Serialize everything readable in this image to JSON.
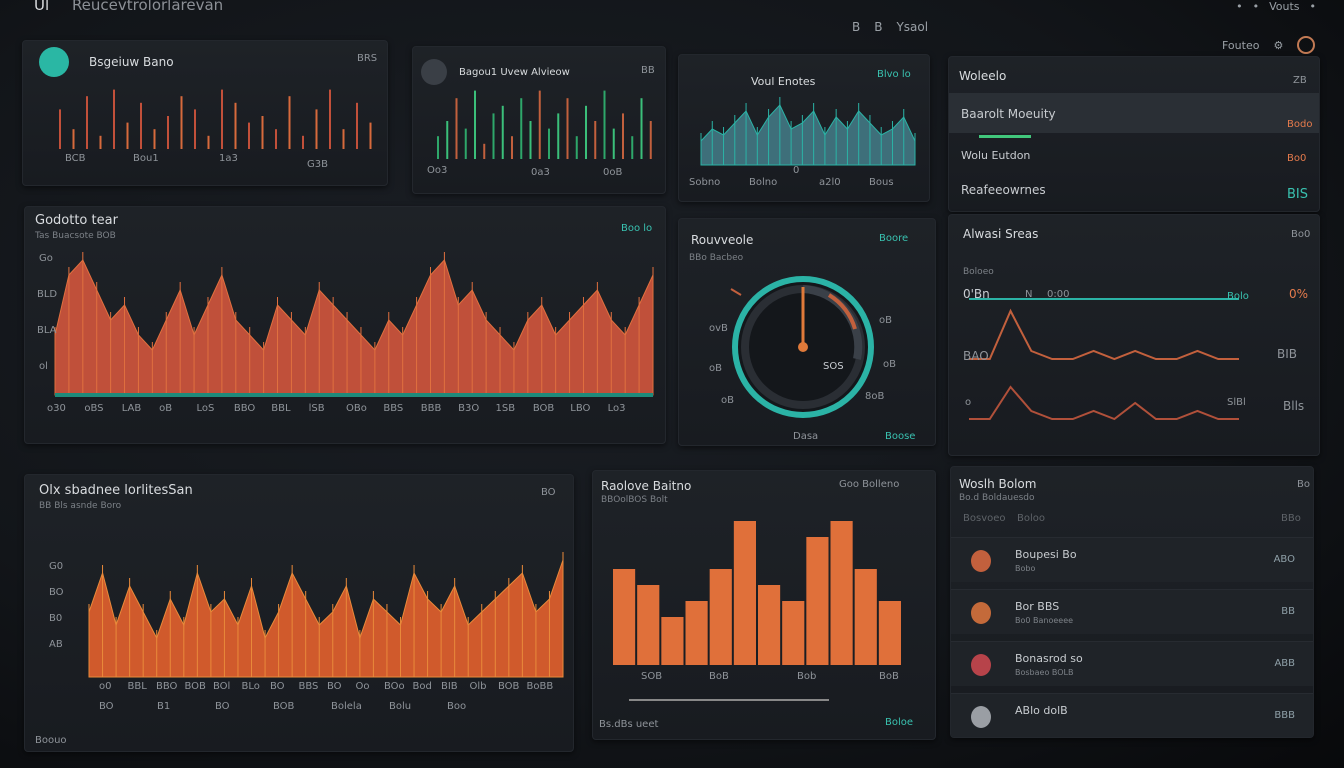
{
  "topbar": {
    "logo": "Ul",
    "title": "Reucevtrolorlarevan",
    "icon_a": "B",
    "icon_b": "B",
    "label": "Ysaol",
    "right_text": "Vouts",
    "right_label": "Fouteo"
  },
  "panels": {
    "p1": {
      "title": "Bsgeiuw Bano",
      "corner": "BRS",
      "ticks": [
        "BCB",
        "Bou1",
        "1a3",
        "G3B"
      ]
    },
    "p2": {
      "title": "Bagou1 Uvew Alvieow",
      "corner": "BB",
      "ticks": [
        "Oo3",
        "0a3",
        "0oB"
      ]
    },
    "p3": {
      "title": "Voul Enotes",
      "corner": "Blvo lo",
      "ticks": [
        "Sobno",
        "Bolno",
        "0",
        "a2l0",
        "Bous"
      ]
    },
    "p4": {
      "title": "Woleelo",
      "corner": "ZB",
      "rows": [
        {
          "label": "Baarolt Moeuity",
          "value": "Bodo"
        },
        {
          "label": "Wolu Eutdon",
          "value": "Bo0"
        },
        {
          "label": "Reafeeowrnes",
          "value": "BIS"
        }
      ]
    },
    "big": {
      "title": "Godotto tear",
      "sub": "Tas Buacsote BOB",
      "corner": "Boo lo",
      "yticks": [
        "Go",
        "BLD",
        "BLA",
        "ol"
      ],
      "xticks": [
        "o30",
        "oBS",
        "LAB",
        "oB",
        "LoS",
        "BBO",
        "BBL",
        "lSB",
        "OBo",
        "BBS",
        "BBB",
        "B3O",
        "1SB",
        "BOB",
        "LBO",
        "Lo3"
      ]
    },
    "gauge": {
      "title": "Rouvveole",
      "sub": "BBo Bacbeo",
      "corner": "Boore",
      "value_label": "SOS",
      "foot_left": "Dasa",
      "foot_right": "Boose",
      "ticks_l": [
        "ovB",
        "oB",
        "oB"
      ],
      "ticks_r": [
        "oB",
        "oB",
        "8oB"
      ]
    },
    "activity": {
      "title": "Alwasi Sreas",
      "corner": "Bo0",
      "sub": "Boloeo",
      "rows": [
        {
          "left": "0'Bn",
          "mid": "N",
          "right_a": "0:00",
          "right_b": "Bolo",
          "right_c": "0%"
        },
        {
          "left": "BAO",
          "right_c": "BIB"
        },
        {
          "left": "o",
          "right_a": "SlBl",
          "right_c": "Blls"
        }
      ]
    },
    "bottom1": {
      "title": "Olx sbadnee lorlitesSan",
      "sub": "BB  Bls asnde Boro",
      "corner": "BO",
      "yticks": [
        "G0",
        "BO",
        "B0",
        "AB"
      ],
      "xticks": [
        "o0",
        "BBL",
        "BBO",
        "BOB",
        "BOl",
        "BLo",
        "BO",
        "BBS",
        "BO",
        "Oo",
        "BOo",
        "Bod",
        "BIB",
        "Olb",
        "BOB",
        "BoBB"
      ],
      "xticks2": [
        "BO",
        "B1",
        "BO",
        "BOB",
        "Bolela",
        "Bolu",
        "Boo"
      ],
      "foot": "Boouo"
    },
    "bottom2": {
      "title": "Raolove Baitno",
      "sub": "BBOolBOS Bolt",
      "corner": "Goo Bolleno",
      "xticks": [
        "SOB",
        "BoB",
        "Bob",
        "BoB"
      ],
      "foot_left": "Bs.dBs ueet",
      "foot_right": "Boloe"
    },
    "list": {
      "title": "Woslh Bolom",
      "sub": "Bo.d  Boldauesdo",
      "corner": "Bo",
      "head": [
        "Bosvoeo",
        "Boloo"
      ],
      "head_right": "BBo",
      "items": [
        {
          "name": "Boupesi Bo",
          "sub": "Bobo",
          "value": "ABO",
          "color": "#c2603d"
        },
        {
          "name": "Bor BBS",
          "sub": "Bo0 Banoeeee",
          "value": "BB",
          "color": "#c46a3a"
        },
        {
          "name": "Bonasrod so",
          "sub": "Bosbaeo  BOLB",
          "value": "ABB",
          "color": "#b7434a"
        },
        {
          "name": "ABlo dolB",
          "sub": "",
          "value": "BBB",
          "color": "#9a9ea4"
        }
      ]
    }
  },
  "chart_data": [
    {
      "type": "bar",
      "title": "Bsgeiuw Bano",
      "series": [
        {
          "values": [
            6,
            3,
            8,
            2,
            9,
            4,
            7,
            3,
            5,
            8,
            6,
            2,
            9,
            7,
            4,
            5,
            3,
            8,
            2,
            6,
            9,
            3,
            7,
            4
          ]
        }
      ]
    },
    {
      "type": "bar",
      "title": "Bagou1 Uvew Alvieow",
      "series": [
        {
          "values": [
            3,
            5,
            8,
            4,
            9,
            2,
            6,
            7,
            3,
            8,
            5,
            9,
            4,
            6,
            8,
            3,
            7,
            5,
            9,
            4,
            6,
            3,
            8,
            5
          ]
        }
      ]
    },
    {
      "type": "area",
      "title": "Voul Enotes",
      "series": [
        {
          "values": [
            4,
            6,
            5,
            7,
            9,
            5,
            8,
            10,
            6,
            7,
            9,
            5,
            8,
            6,
            9,
            7,
            5,
            6,
            8,
            4
          ]
        }
      ]
    },
    {
      "type": "area",
      "title": "Godotto tear",
      "ylim": [
        0,
        10
      ],
      "series": [
        {
          "values": [
            4,
            8,
            9,
            7,
            5,
            6,
            4,
            3,
            5,
            7,
            4,
            6,
            8,
            5,
            4,
            3,
            6,
            5,
            4,
            7,
            6,
            5,
            4,
            3,
            5,
            4,
            6,
            8,
            9,
            6,
            7,
            5,
            4,
            3,
            5,
            6,
            4,
            5,
            6,
            7,
            5,
            4,
            6,
            8
          ]
        }
      ]
    },
    {
      "type": "line",
      "title": "Alwasi Sreas",
      "series": [
        {
          "values": [
            5,
            5,
            5,
            5,
            5,
            5,
            5,
            5,
            5,
            5,
            5,
            5,
            5,
            5
          ]
        },
        {
          "values": [
            3,
            3,
            9,
            4,
            3,
            3,
            4,
            3,
            4,
            3,
            3,
            4,
            3,
            3
          ]
        },
        {
          "values": [
            2,
            2,
            6,
            3,
            2,
            2,
            3,
            2,
            4,
            2,
            2,
            3,
            2,
            2
          ]
        }
      ]
    },
    {
      "type": "area",
      "title": "Olx sbadnee lorlitesSan",
      "ylim": [
        0,
        10
      ],
      "series": [
        {
          "values": [
            5,
            8,
            4,
            7,
            5,
            3,
            6,
            4,
            8,
            5,
            6,
            4,
            7,
            3,
            5,
            8,
            6,
            4,
            5,
            7,
            3,
            6,
            5,
            4,
            8,
            6,
            5,
            7,
            4,
            5,
            6,
            7,
            8,
            5,
            6,
            9
          ]
        }
      ]
    },
    {
      "type": "bar",
      "title": "Raolove Baitno",
      "series": [
        {
          "values": [
            6,
            5,
            3,
            4,
            6,
            9,
            5,
            4,
            8,
            9,
            6,
            4
          ]
        }
      ]
    }
  ]
}
